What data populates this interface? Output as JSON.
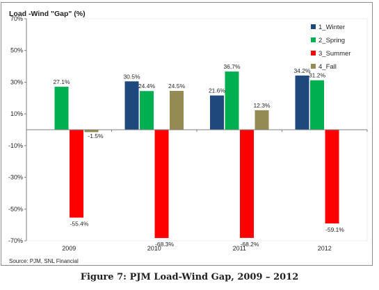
{
  "caption": "Figure 7: PJM Load-Wind Gap, 2009 – 2012",
  "chart_data": {
    "type": "bar",
    "title": "Load -Wind \"Gap\" (%)",
    "source": "Source: PJM, SNL Financial",
    "categories": [
      "2009",
      "2010",
      "2011",
      "2012"
    ],
    "ylim": [
      -70,
      70
    ],
    "yticks": [
      70,
      50,
      30,
      10,
      -10,
      -30,
      -50,
      -70
    ],
    "ytick_labels": [
      "70%",
      "50%",
      "30%",
      "10%",
      "-10%",
      "-30%",
      "-50%",
      "-70%"
    ],
    "grid": false,
    "legend_position": "top-right",
    "series": [
      {
        "name": "1_Winter",
        "color": "#1f497d",
        "values": [
          null,
          30.5,
          21.6,
          34.2
        ],
        "labels": [
          "",
          "30.5%",
          "21.6%",
          "34.2%"
        ]
      },
      {
        "name": "2_Spring",
        "color": "#00b050",
        "values": [
          27.1,
          24.4,
          36.7,
          31.2
        ],
        "labels": [
          "27.1%",
          "24.4%",
          "36.7%",
          "31.2%"
        ]
      },
      {
        "name": "3_Summer",
        "color": "#ff0000",
        "values": [
          -55.4,
          -68.3,
          -68.2,
          -59.1
        ],
        "labels": [
          "-55.4%",
          "-68.3%",
          "-68.2%",
          "-59.1%"
        ]
      },
      {
        "name": "4_Fall",
        "color": "#948a54",
        "values": [
          -1.5,
          24.5,
          12.3,
          null
        ],
        "labels": [
          "-1.5%",
          "24.5%",
          "12.3%",
          ""
        ]
      }
    ]
  }
}
